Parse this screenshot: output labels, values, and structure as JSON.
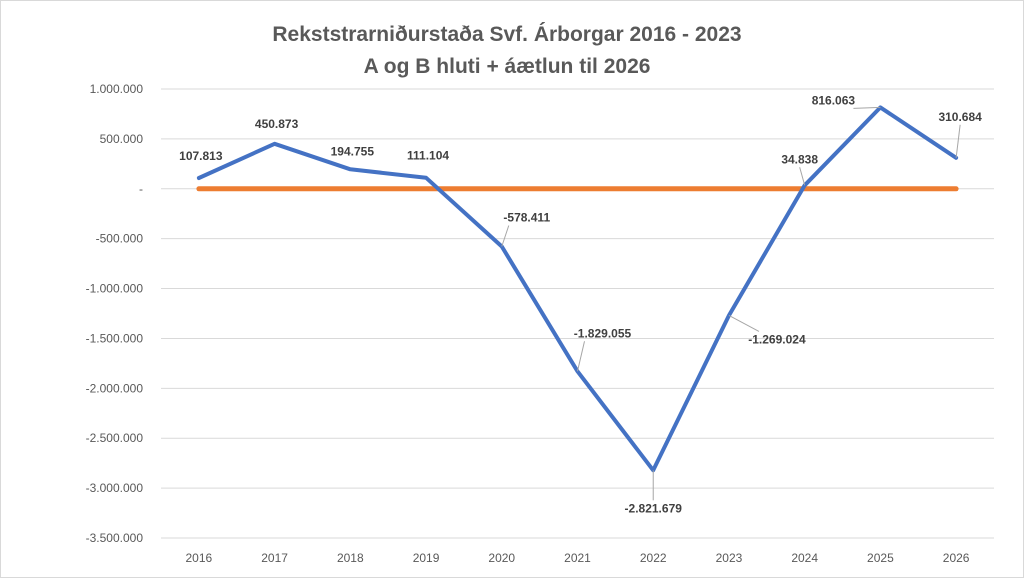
{
  "chart_data": {
    "type": "line",
    "title": "Rekststrarniðurstaða Svf. Árborgar 2016 - 2023",
    "subtitle": "A og B hluti + áætlun til 2026",
    "xlabel": "",
    "ylabel": "",
    "categories": [
      "2016",
      "2017",
      "2018",
      "2019",
      "2020",
      "2021",
      "2022",
      "2023",
      "2024",
      "2025",
      "2026"
    ],
    "ylim": [
      -3500000,
      1000000
    ],
    "yticks": [
      1000000,
      500000,
      0,
      -500000,
      -1000000,
      -1500000,
      -2000000,
      -2500000,
      -3000000,
      -3500000
    ],
    "ytick_labels": [
      "1.000.000",
      "500.000",
      "-",
      "-500.000",
      "-1.000.000",
      "-1.500.000",
      "-2.000.000",
      "-2.500.000",
      "-3.000.000",
      "-3.500.000"
    ],
    "grid": true,
    "legend": "none",
    "series": [
      {
        "color": "#4472c4",
        "values": [
          107813,
          450873,
          194755,
          111104,
          -578411,
          -1829055,
          -2821679,
          -1269024,
          34838,
          816063,
          310684
        ],
        "data_labels": [
          "107.813",
          "450.873",
          "194.755",
          "111.104",
          "-578.411",
          "-1.829.055",
          "-2.821.679",
          "-1.269.024",
          "34.838",
          "816.063",
          "310.684"
        ]
      },
      {
        "color": "#ed7d31",
        "values": [
          0,
          0,
          0,
          0,
          0,
          0,
          0,
          0,
          0,
          0,
          0
        ]
      }
    ]
  }
}
